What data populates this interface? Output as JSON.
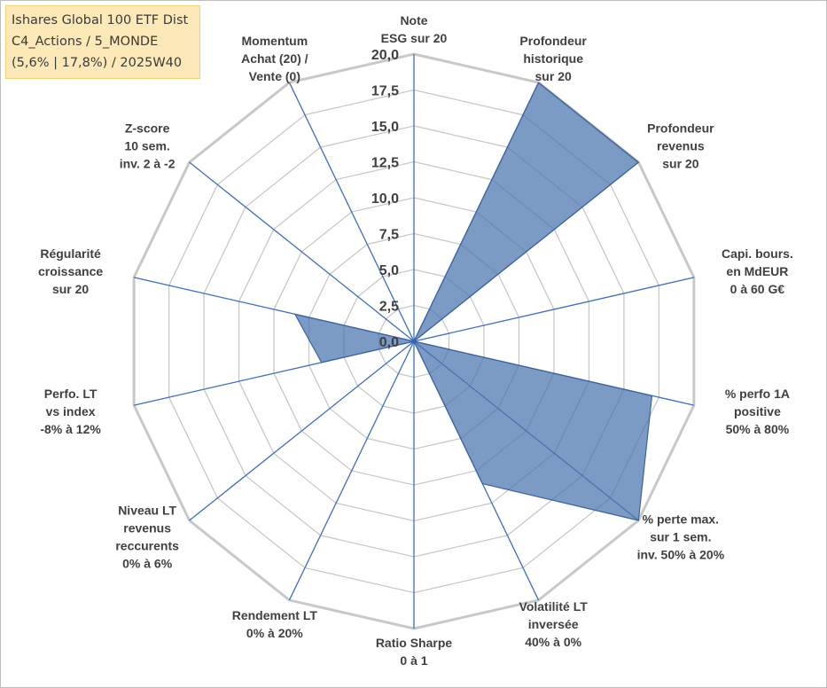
{
  "info_box": {
    "line1": "Ishares Global 100 ETF Dist",
    "line2": "C4_Actions / 5_MONDE",
    "line3": "(5,6% | 17,8%) / 2025W40"
  },
  "colors": {
    "grid": "#c8c8c8",
    "spoke": "#3a6fbf",
    "fill": "#4a74ad",
    "stroke": "#3b63a0",
    "text": "#404040",
    "info_box_bg": "#fde9b8"
  },
  "chart_data": {
    "type": "radar",
    "title": "",
    "rmin": 0,
    "rmax": 20,
    "grid": true,
    "tick_values": [
      0,
      2.5,
      5,
      7.5,
      10,
      12.5,
      15,
      17.5,
      20
    ],
    "tick_labels": [
      "0,0",
      "2,5",
      "5,0",
      "7,5",
      "10,0",
      "12,5",
      "15,0",
      "17,5",
      "20,0"
    ],
    "axes": [
      {
        "lines": [
          "Note",
          "ESG sur 20"
        ]
      },
      {
        "lines": [
          "Profondeur",
          "historique",
          "sur 20"
        ]
      },
      {
        "lines": [
          "Profondeur",
          "revenus",
          "sur 20"
        ]
      },
      {
        "lines": [
          "Capi. bours.",
          "en MdEUR",
          "0 à 60 G€"
        ]
      },
      {
        "lines": [
          "% perfo 1A",
          "positive",
          "50% à 80%"
        ]
      },
      {
        "lines": [
          "% perte max.",
          "sur 1 sem.",
          "inv. 50% à 20%"
        ]
      },
      {
        "lines": [
          "Volatilité LT",
          "inversée",
          "40% à 0%"
        ]
      },
      {
        "lines": [
          "Ratio Sharpe",
          "0 à 1"
        ]
      },
      {
        "lines": [
          "Rendement LT",
          "0% à 20%"
        ]
      },
      {
        "lines": [
          "Niveau LT",
          "revenus",
          "reccurents",
          "0% à 6%"
        ]
      },
      {
        "lines": [
          "Perfo. LT",
          "vs index",
          "-8% à 12%"
        ]
      },
      {
        "lines": [
          "Régularité",
          "croissance",
          "sur 20"
        ]
      },
      {
        "lines": [
          "Z-score",
          "10 sem.",
          "inv. 2 à -2"
        ]
      },
      {
        "lines": [
          "Momentum",
          "Achat (20) /",
          "Vente (0)"
        ]
      }
    ],
    "series": [
      {
        "values": [
          0,
          20,
          20,
          0,
          17,
          20,
          11,
          0,
          0,
          0,
          6.6,
          8.5,
          0,
          0
        ]
      }
    ]
  }
}
